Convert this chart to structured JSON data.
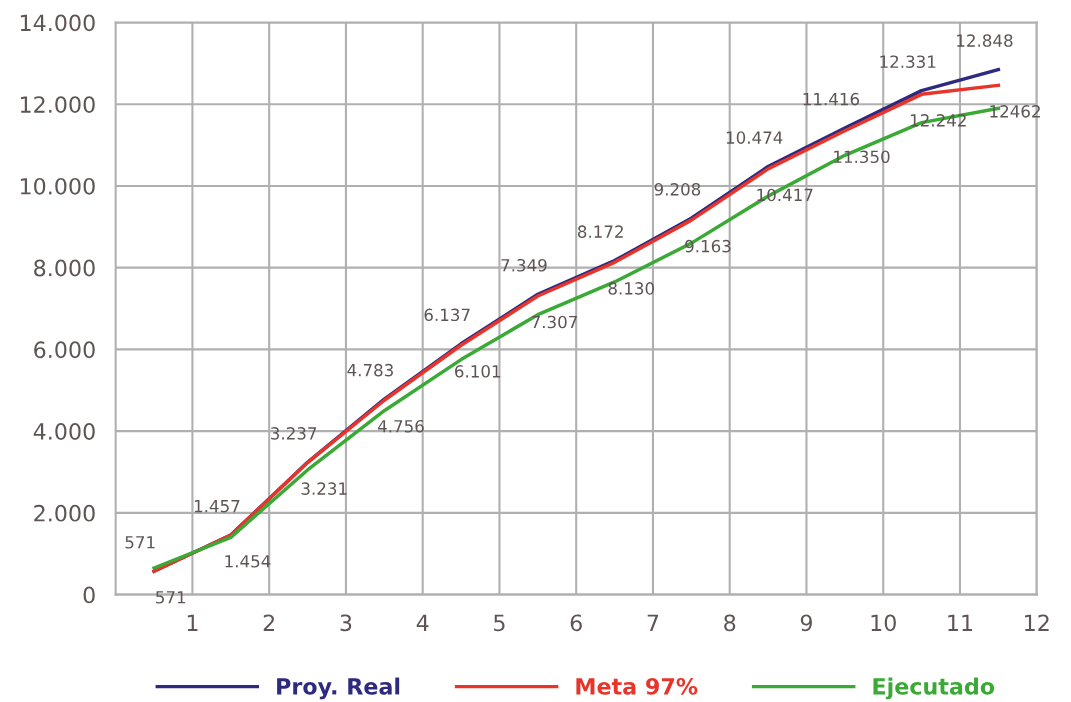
{
  "chart_data": {
    "type": "line",
    "x": [
      0.5,
      1.5,
      2.5,
      3.5,
      4.5,
      5.5,
      6.5,
      7.5,
      8.5,
      9.5,
      10.5,
      11.5
    ],
    "series": [
      {
        "name": "Proy. Real",
        "color": "#2e2a7f",
        "values": [
          571,
          1457,
          3237,
          4783,
          6137,
          7349,
          8172,
          9208,
          10474,
          11416,
          12331,
          12848
        ],
        "value_labels": [
          "571",
          "1.457",
          "3.237",
          "4.783",
          "6.137",
          "7.349",
          "8.172",
          "9.208",
          "10.474",
          "11.416",
          "12.331",
          "12.848"
        ]
      },
      {
        "name": "Meta 97%",
        "color": "#e8352b",
        "values": [
          571,
          1454,
          3231,
          4756,
          6101,
          7307,
          8130,
          9163,
          10417,
          11350,
          12242,
          12462
        ],
        "value_labels": [
          "571",
          "1.454",
          "3.231",
          "4.756",
          "6.101",
          "7.307",
          "8.130",
          "9.163",
          "10.417",
          "11.350",
          "12.242",
          "12462"
        ]
      },
      {
        "name": "Ejecutado",
        "color": "#3aa935",
        "values": [
          650,
          1400,
          3050,
          4500,
          5750,
          6850,
          7650,
          8600,
          9750,
          10750,
          11550,
          11900
        ]
      }
    ],
    "xlim": [
      0,
      12
    ],
    "xticks": [
      1,
      2,
      3,
      4,
      5,
      6,
      7,
      8,
      9,
      10,
      11,
      12
    ],
    "ylim": [
      0,
      14000
    ],
    "yticks": [
      {
        "value": 0,
        "label": "0"
      },
      {
        "value": 2000,
        "label": "2.000"
      },
      {
        "value": 4000,
        "label": "4.000"
      },
      {
        "value": 6000,
        "label": "6.000"
      },
      {
        "value": 8000,
        "label": "8.000"
      },
      {
        "value": 10000,
        "label": "10.000"
      },
      {
        "value": 12000,
        "label": "12.000"
      },
      {
        "value": 14000,
        "label": "14.000"
      }
    ],
    "grid": true,
    "legend": "bottom",
    "marker": "none",
    "line_style": "solid"
  }
}
